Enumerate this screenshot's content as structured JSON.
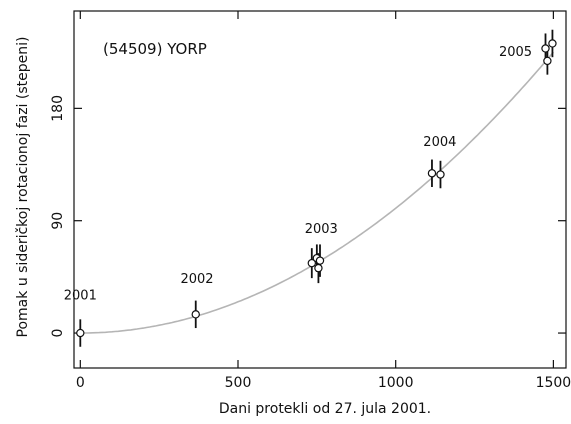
{
  "chart_data": {
    "type": "scatter",
    "title": "(54509) YORP",
    "xlabel": "Dani protekli od 27. jula 2001.",
    "ylabel": "Pomak u sideričkoj rotacionoj fazi (stepeni)",
    "xlim": [
      -20,
      1540
    ],
    "ylim": [
      -28,
      258
    ],
    "xticks": [
      0,
      500,
      1000,
      1500
    ],
    "yticks": [
      0,
      90,
      180
    ],
    "grid": false,
    "series": [
      {
        "points": [
          {
            "x": 0,
            "y": 0,
            "err": 11
          },
          {
            "x": 366,
            "y": 15,
            "err": 11
          },
          {
            "x": 734,
            "y": 56,
            "err": 12
          },
          {
            "x": 750,
            "y": 60,
            "err": 11
          },
          {
            "x": 755,
            "y": 52,
            "err": 12
          },
          {
            "x": 760,
            "y": 58,
            "err": 13
          },
          {
            "x": 1115,
            "y": 128,
            "err": 11
          },
          {
            "x": 1142,
            "y": 127,
            "err": 11
          },
          {
            "x": 1475,
            "y": 228,
            "err": 12
          },
          {
            "x": 1481,
            "y": 218,
            "err": 11
          },
          {
            "x": 1497,
            "y": 232,
            "err": 11
          }
        ]
      }
    ],
    "fit": {
      "type": "quadratic",
      "coeff_a": 0.0001,
      "note": "y = 0.0001 * x^2"
    },
    "annotations": [
      {
        "text": "2001",
        "x": 0,
        "y": 27
      },
      {
        "text": "2002",
        "x": 370,
        "y": 40
      },
      {
        "text": "2003",
        "x": 764,
        "y": 80
      },
      {
        "text": "2004",
        "x": 1140,
        "y": 150
      },
      {
        "text": "2005",
        "x": 1380,
        "y": 222
      }
    ]
  }
}
